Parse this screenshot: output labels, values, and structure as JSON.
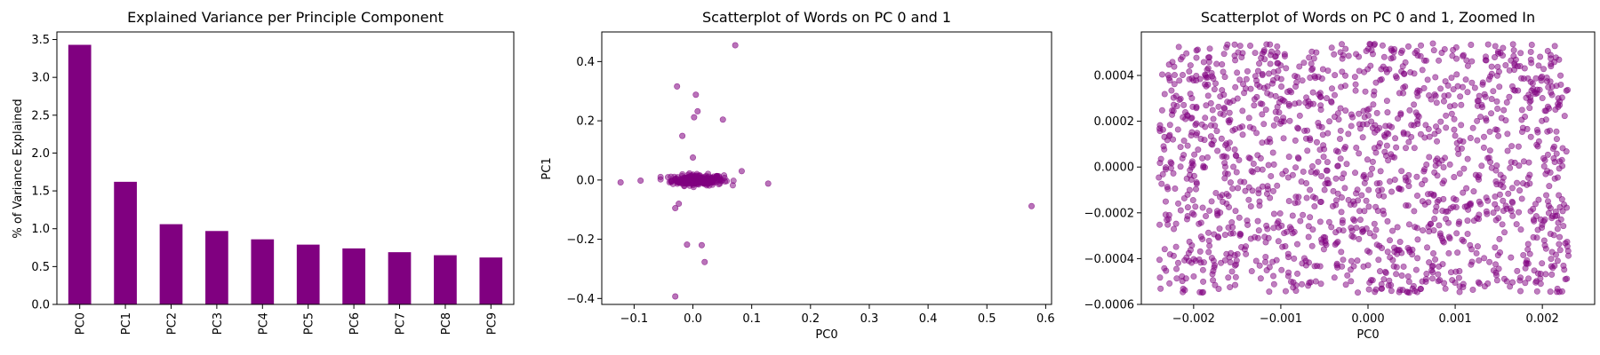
{
  "colors": {
    "accent": "#800080",
    "axis": "#000000",
    "background": "#ffffff"
  },
  "chart_data": [
    {
      "type": "bar",
      "title": "Explained Variance per Principle Component",
      "xlabel": "",
      "ylabel": "% of Variance Explained",
      "categories": [
        "PC0",
        "PC1",
        "PC2",
        "PC3",
        "PC4",
        "PC5",
        "PC6",
        "PC7",
        "PC8",
        "PC9"
      ],
      "values": [
        3.43,
        1.62,
        1.06,
        0.97,
        0.86,
        0.79,
        0.74,
        0.69,
        0.65,
        0.62
      ],
      "ylim": [
        0,
        3.6
      ],
      "yticks": [
        "0.0",
        "0.5",
        "1.0",
        "1.5",
        "2.0",
        "2.5",
        "3.0",
        "3.5"
      ],
      "grid": false,
      "bar_color": "#800080"
    },
    {
      "type": "scatter",
      "title": "Scatterplot of Words on PC 0 and 1",
      "xlabel": "PC0",
      "ylabel": "PC1",
      "xlim": [
        -0.155,
        0.61
      ],
      "ylim": [
        -0.42,
        0.5
      ],
      "xticks": [
        "−0.1",
        "0.0",
        "0.1",
        "0.2",
        "0.3",
        "0.4",
        "0.5",
        "0.6"
      ],
      "yticks": [
        "−0.4",
        "−0.2",
        "0.0",
        "0.2",
        "0.4"
      ],
      "grid": false,
      "point_color": "#800080",
      "points": [
        [
          0.072,
          0.455
        ],
        [
          -0.027,
          0.316
        ],
        [
          0.005,
          0.288
        ],
        [
          0.008,
          0.232
        ],
        [
          0.002,
          0.212
        ],
        [
          0.051,
          0.204
        ],
        [
          -0.018,
          0.149
        ],
        [
          0.0,
          0.076
        ],
        [
          0.576,
          -0.088
        ],
        [
          -0.123,
          -0.008
        ],
        [
          -0.089,
          -0.002
        ],
        [
          0.128,
          -0.012
        ],
        [
          0.083,
          0.03
        ],
        [
          -0.03,
          -0.095
        ],
        [
          -0.024,
          -0.08
        ],
        [
          -0.01,
          -0.218
        ],
        [
          0.015,
          -0.22
        ],
        [
          0.02,
          -0.277
        ],
        [
          -0.03,
          -0.393
        ]
      ],
      "cluster": {
        "x_range": [
          -0.055,
          0.075
        ],
        "y_range": [
          -0.035,
          0.035
        ],
        "count": 260
      }
    },
    {
      "type": "scatter",
      "title": "Scatterplot of Words on PC 0 and 1, Zoomed In",
      "xlabel": "PC0",
      "ylabel": "",
      "xlim": [
        -0.0026,
        0.0026
      ],
      "ylim": [
        -0.0006,
        0.00059
      ],
      "xticks": [
        "−0.002",
        "−0.001",
        "0.000",
        "0.001",
        "0.002"
      ],
      "yticks": [
        "−0.0006",
        "−0.0004",
        "−0.0002",
        "0.0000",
        "0.0002",
        "0.0004"
      ],
      "grid": false,
      "point_color": "#800080",
      "points_distribution": {
        "x_range": [
          -0.0024,
          0.0023
        ],
        "y_range": [
          -0.00055,
          0.00054
        ],
        "count": 1500
      }
    }
  ]
}
